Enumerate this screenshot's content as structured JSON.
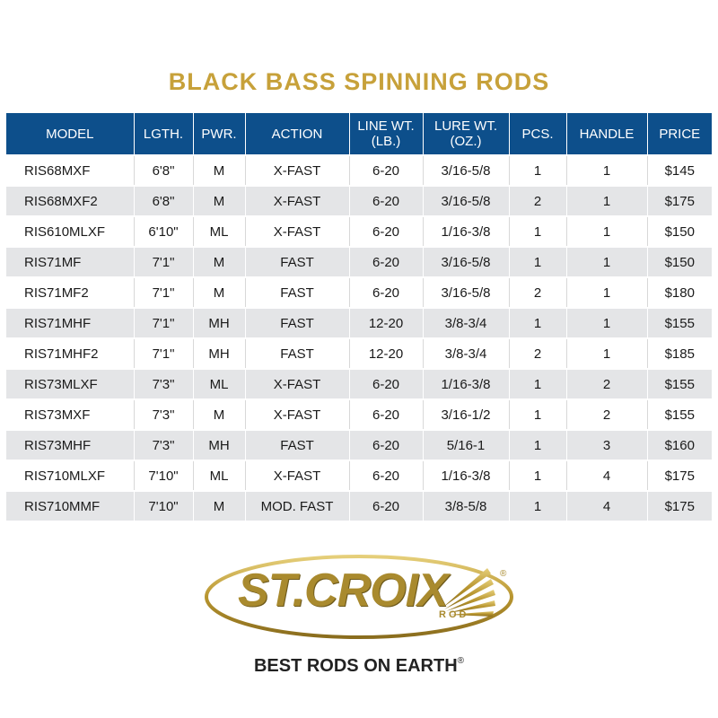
{
  "title": "BLACK BASS SPINNING RODS",
  "table": {
    "headers": [
      {
        "line1": "MODEL",
        "line2": ""
      },
      {
        "line1": "LGTH.",
        "line2": ""
      },
      {
        "line1": "PWR.",
        "line2": ""
      },
      {
        "line1": "ACTION",
        "line2": ""
      },
      {
        "line1": "LINE WT.",
        "line2": "(LB.)"
      },
      {
        "line1": "LURE WT.",
        "line2": "(OZ.)"
      },
      {
        "line1": "PCS.",
        "line2": ""
      },
      {
        "line1": "HANDLE",
        "line2": ""
      },
      {
        "line1": "PRICE",
        "line2": ""
      }
    ],
    "rows": [
      [
        "RIS68MXF",
        "6'8\"",
        "M",
        "X-FAST",
        "6-20",
        "3/16-5/8",
        "1",
        "1",
        "$145"
      ],
      [
        "RIS68MXF2",
        "6'8\"",
        "M",
        "X-FAST",
        "6-20",
        "3/16-5/8",
        "2",
        "1",
        "$175"
      ],
      [
        "RIS610MLXF",
        "6'10\"",
        "ML",
        "X-FAST",
        "6-20",
        "1/16-3/8",
        "1",
        "1",
        "$150"
      ],
      [
        "RIS71MF",
        "7'1\"",
        "M",
        "FAST",
        "6-20",
        "3/16-5/8",
        "1",
        "1",
        "$150"
      ],
      [
        "RIS71MF2",
        "7'1\"",
        "M",
        "FAST",
        "6-20",
        "3/16-5/8",
        "2",
        "1",
        "$180"
      ],
      [
        "RIS71MHF",
        "7'1\"",
        "MH",
        "FAST",
        "12-20",
        "3/8-3/4",
        "1",
        "1",
        "$155"
      ],
      [
        "RIS71MHF2",
        "7'1\"",
        "MH",
        "FAST",
        "12-20",
        "3/8-3/4",
        "2",
        "1",
        "$185"
      ],
      [
        "RIS73MLXF",
        "7'3\"",
        "ML",
        "X-FAST",
        "6-20",
        "1/16-3/8",
        "1",
        "2",
        "$155"
      ],
      [
        "RIS73MXF",
        "7'3\"",
        "M",
        "X-FAST",
        "6-20",
        "3/16-1/2",
        "1",
        "2",
        "$155"
      ],
      [
        "RIS73MHF",
        "7'3\"",
        "MH",
        "FAST",
        "6-20",
        "5/16-1",
        "1",
        "3",
        "$160"
      ],
      [
        "RIS710MLXF",
        "7'10\"",
        "ML",
        "X-FAST",
        "6-20",
        "1/16-3/8",
        "1",
        "4",
        "$175"
      ],
      [
        "RIS710MMF",
        "7'10\"",
        "M",
        "MOD. FAST",
        "6-20",
        "3/8-5/8",
        "1",
        "4",
        "$175"
      ]
    ]
  },
  "logo": {
    "text": "ST.CROIX",
    "sub": "ROD",
    "reg": "®"
  },
  "tagline": {
    "text": "BEST RODS ON EARTH",
    "reg": "®"
  },
  "colors": {
    "title_gold": "#c7a13a",
    "header_blue": "#0d4f8b",
    "stripe_gray": "#e4e5e7",
    "logo_gold": "#a98a2e"
  }
}
